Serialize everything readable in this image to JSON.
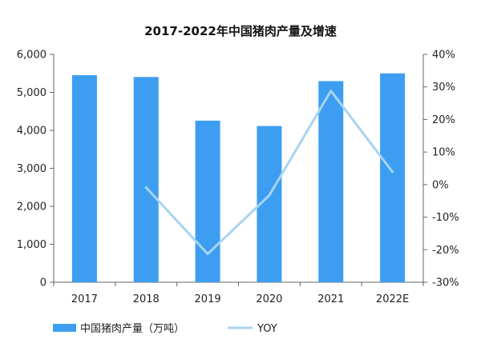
{
  "chart_data": {
    "type": "bar",
    "title": "2017-2022年中国猪肉产量及增速",
    "categories": [
      "2017",
      "2018",
      "2019",
      "2020",
      "2021",
      "2022E"
    ],
    "series": [
      {
        "name": "中国猪肉产量（万吨）",
        "type": "bar",
        "axis": "left",
        "values": [
          5452,
          5404,
          4255,
          4113,
          5296,
          5500
        ]
      },
      {
        "name": "YOY",
        "type": "line",
        "axis": "right",
        "values": [
          null,
          -0.9,
          -21.3,
          -3.3,
          28.8,
          3.9
        ]
      }
    ],
    "y_left": {
      "min": 0,
      "max": 6000,
      "ticks": [
        0,
        1000,
        2000,
        3000,
        4000,
        5000,
        6000
      ],
      "tick_labels": [
        "0",
        "1,000",
        "2,000",
        "3,000",
        "4,000",
        "5,000",
        "6,000"
      ]
    },
    "y_right": {
      "min": -30,
      "max": 40,
      "ticks": [
        -30,
        -20,
        -10,
        0,
        10,
        20,
        30,
        40
      ],
      "tick_labels": [
        "-30%",
        "-20%",
        "-10%",
        "0%",
        "10%",
        "20%",
        "30%",
        "40%"
      ]
    },
    "legend_position": "bottom-left",
    "grid": false,
    "colors": {
      "bar": "#3d9ef1",
      "line": "#a8d4f2",
      "axis": "#666666"
    }
  }
}
